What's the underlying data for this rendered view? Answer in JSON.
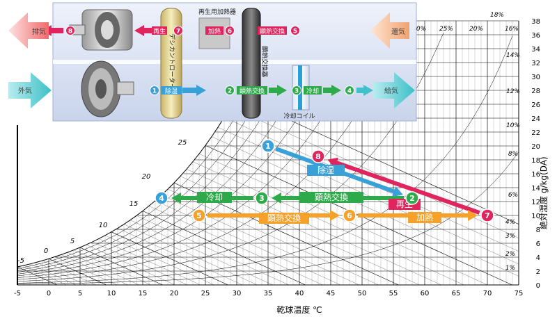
{
  "header": {
    "reheater_label": "再生用加熱器",
    "rotor_label": "デシカントローター",
    "hx_label": "顕熱交換器",
    "coil_label": "冷却コイル"
  },
  "flows": {
    "exhaust": "排気",
    "return_air": "還気",
    "outside_air": "外気",
    "supply_air": "給気"
  },
  "process": {
    "p1": "除湿",
    "p2": "顕熱交換",
    "p3": "冷却",
    "p5": "顕熱交換",
    "p6": "加熱",
    "p7": "再生"
  },
  "step_numbers": [
    "1",
    "2",
    "3",
    "4",
    "5",
    "6",
    "7",
    "8"
  ],
  "chart": {
    "x_axis_label": "乾球温度 ℃",
    "y_axis_label": "絶対湿度 g/kg(DA)",
    "x_ticks": [
      "-5",
      "0",
      "5",
      "10",
      "15",
      "20",
      "25",
      "30",
      "35",
      "40",
      "45",
      "50",
      "55",
      "60",
      "65",
      "70",
      "75"
    ],
    "y_ticks": [
      "0",
      "2",
      "4",
      "6",
      "8",
      "10",
      "12",
      "14",
      "16",
      "18",
      "20",
      "22",
      "24",
      "26",
      "28",
      "30",
      "32",
      "34",
      "36",
      "38"
    ],
    "rh_labels": [
      "18%",
      "0%",
      "25%",
      "20%",
      "16%",
      "14%",
      "12%",
      "10%",
      "8%",
      "6%",
      "4%",
      "3%",
      "2%",
      "1%"
    ],
    "wb_labels": [
      "25",
      "20",
      "15",
      "10",
      "5",
      "0",
      "-5"
    ]
  },
  "colors": {
    "red": "#e0245e",
    "blue": "#3aa0d8",
    "green": "#2eaa4a",
    "orange": "#f5a12a",
    "cyan": "#40c0c8"
  },
  "chart_data": {
    "type": "line",
    "xlabel": "乾球温度 ℃",
    "ylabel": "絶対湿度 g/kg(DA)",
    "xlim": [
      -5,
      75
    ],
    "ylim": [
      0,
      38
    ],
    "points": [
      {
        "id": "1",
        "x": 35,
        "y": 20.0
      },
      {
        "id": "2",
        "x": 58,
        "y": 12.5
      },
      {
        "id": "3",
        "x": 34,
        "y": 12.5
      },
      {
        "id": "4",
        "x": 18,
        "y": 12.5
      },
      {
        "id": "5",
        "x": 24,
        "y": 10.0
      },
      {
        "id": "6",
        "x": 48,
        "y": 10.0
      },
      {
        "id": "7",
        "x": 70,
        "y": 10.0
      },
      {
        "id": "8",
        "x": 43,
        "y": 18.5
      }
    ],
    "series": [
      {
        "name": "除湿",
        "from": "1",
        "to": "2",
        "color": "#3aa0d8"
      },
      {
        "name": "顕熱交換",
        "from": "2",
        "to": "3",
        "color": "#2eaa4a"
      },
      {
        "name": "冷却",
        "from": "3",
        "to": "4",
        "color": "#2eaa4a"
      },
      {
        "name": "顕熱交換",
        "from": "5",
        "to": "6",
        "color": "#f5a12a"
      },
      {
        "name": "加熱",
        "from": "6",
        "to": "7",
        "color": "#f5a12a"
      },
      {
        "name": "再生",
        "from": "7",
        "to": "8",
        "color": "#e0245e"
      }
    ]
  }
}
